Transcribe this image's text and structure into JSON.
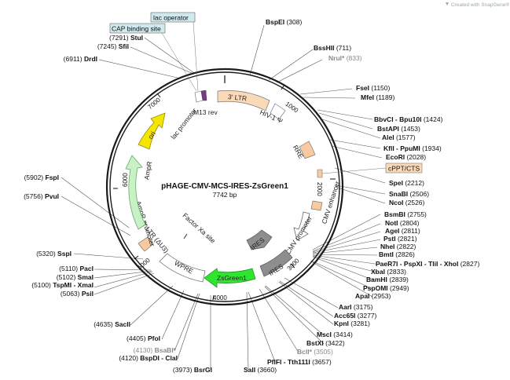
{
  "map": {
    "name": "pHAGE-CMV-MCS-IRES-ZsGreen1",
    "size_label": "7742 bp",
    "total_bp": 7742
  },
  "credit": "Created with SnapGene®",
  "colors": {
    "backbone": "#1a1a1a",
    "ltr": "#f9d9b8",
    "orange": "#f9c9a0",
    "gray": "#8e8e8e",
    "ori": "#f5e600",
    "ampr": "#c6f2c6",
    "zsgreen": "#2ee62e",
    "white": "#ffffff",
    "callout": "#cfe9ef"
  },
  "tick_labels": [
    "1000",
    "2000",
    "3000",
    "4000",
    "5000",
    "6000",
    "7000"
  ],
  "callouts": [
    {
      "text": "lac operator"
    },
    {
      "text": "CAP binding site"
    },
    {
      "text": "cPPT/CTS"
    }
  ],
  "features": [
    {
      "label": "3' LTR"
    },
    {
      "label": "HIV-1 Ψ"
    },
    {
      "label": "RRE"
    },
    {
      "label": "CMV enhancer"
    },
    {
      "label": "CMV promoter"
    },
    {
      "label": "IRES"
    },
    {
      "label": "IRES"
    },
    {
      "label": "ZsGreen1"
    },
    {
      "label": "WPRE"
    },
    {
      "label": "3' LTR (ΔU3)"
    },
    {
      "label": "AmpR promoter"
    },
    {
      "label": "AmpR"
    },
    {
      "label": "ori"
    },
    {
      "label": "lac promoter"
    },
    {
      "label": "M13 rev"
    },
    {
      "label": "Factor Xa site"
    }
  ],
  "sites_right": [
    {
      "name": "BspEI",
      "pos": "(308)"
    },
    {
      "name": "BssHII",
      "pos": "(711)"
    },
    {
      "name": "NruI*",
      "pos": "(833)",
      "gray": true
    },
    {
      "name": "FseI",
      "pos": "(1150)"
    },
    {
      "name": "MfeI",
      "pos": "(1189)"
    },
    {
      "name": "BbvCI - Bpu10I",
      "pos": "(1424)"
    },
    {
      "name": "BstAPI",
      "pos": "(1453)"
    },
    {
      "name": "AleI",
      "pos": "(1577)"
    },
    {
      "name": "KflI - PpuMI",
      "pos": "(1934)"
    },
    {
      "name": "EcoRI",
      "pos": "(2028)"
    },
    {
      "name": "SpeI",
      "pos": "(2212)"
    },
    {
      "name": "SnaBI",
      "pos": "(2506)"
    },
    {
      "name": "NcoI",
      "pos": "(2526)"
    },
    {
      "name": "BsmBI",
      "pos": "(2755)"
    },
    {
      "name": "NotI",
      "pos": "(2804)"
    },
    {
      "name": "AgeI",
      "pos": "(2811)"
    },
    {
      "name": "PstI",
      "pos": "(2821)"
    },
    {
      "name": "NheI",
      "pos": "(2822)"
    },
    {
      "name": "BmtI",
      "pos": "(2826)"
    },
    {
      "name": "PaeR7I - PspXI - TliI - XhoI",
      "pos": "(2827)"
    },
    {
      "name": "XbaI",
      "pos": "(2833)"
    },
    {
      "name": "BamHI",
      "pos": "(2839)"
    },
    {
      "name": "PspOMI",
      "pos": "(2949)"
    },
    {
      "name": "ApaI",
      "pos": "(2953)"
    },
    {
      "name": "AarI",
      "pos": "(3175)"
    },
    {
      "name": "Acc65I",
      "pos": "(3277)"
    },
    {
      "name": "KpnI",
      "pos": "(3281)"
    },
    {
      "name": "MscI",
      "pos": "(3414)"
    },
    {
      "name": "BstXI",
      "pos": "(3422)"
    },
    {
      "name": "BclI*",
      "pos": "(3505)",
      "gray": true
    },
    {
      "name": "PflFI - Tth111I",
      "pos": "(3657)"
    },
    {
      "name": "SalI",
      "pos": "(3660)"
    }
  ],
  "sites_left": [
    {
      "name": "BsrGI",
      "pos": "(3973)"
    },
    {
      "name": "BspDI - ClaI",
      "pos": "(4120)"
    },
    {
      "name": "BsaBI*",
      "pos": "(4130)",
      "gray": true
    },
    {
      "name": "PfoI",
      "pos": "(4405)"
    },
    {
      "name": "SacII",
      "pos": "(4635)"
    },
    {
      "name": "PsiI",
      "pos": "(5063)"
    },
    {
      "name": "TspMI - XmaI",
      "pos": "(5100)"
    },
    {
      "name": "SmaI",
      "pos": "(5102)"
    },
    {
      "name": "PacI",
      "pos": "(5110)"
    },
    {
      "name": "SspI",
      "pos": "(5320)"
    },
    {
      "name": "PvuI",
      "pos": "(5756)"
    },
    {
      "name": "FspI",
      "pos": "(5902)"
    },
    {
      "name": "DrdI",
      "pos": "(6911)"
    },
    {
      "name": "SfiI",
      "pos": "(7245)"
    },
    {
      "name": "StuI",
      "pos": "(7291)"
    }
  ]
}
